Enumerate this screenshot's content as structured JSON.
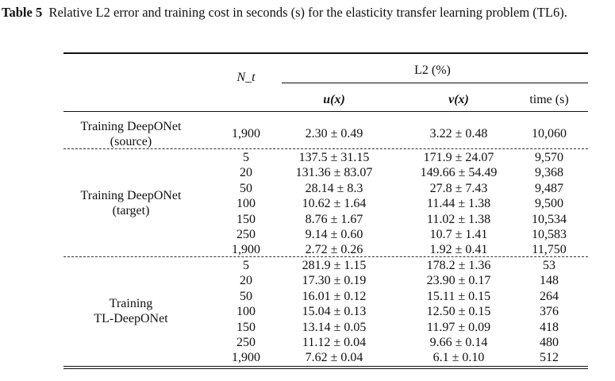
{
  "caption": {
    "label": "Table 5",
    "text": "Relative L2 error and training cost in seconds (s) for the elasticity transfer learning problem (TL6)."
  },
  "header": {
    "nt": "N_t",
    "l2": "L2 (%)",
    "u": "u(x)",
    "v": "v(x)",
    "time": "time (s)"
  },
  "groups": [
    {
      "label": [
        "Training DeepONet",
        "(source)"
      ],
      "rows": [
        [
          "1,900",
          "2.30 ± 0.49",
          "3.22 ± 0.48",
          "10,060"
        ]
      ]
    },
    {
      "label": [
        "Training DeepONet",
        "(target)"
      ],
      "rows": [
        [
          "5",
          "137.5 ± 31.15",
          "171.9 ± 24.07",
          "9,570"
        ],
        [
          "20",
          "131.36 ± 83.07",
          "149.66 ± 54.49",
          "9,368"
        ],
        [
          "50",
          "28.14 ± 8.3",
          "27.8 ± 7.43",
          "9,487"
        ],
        [
          "100",
          "10.62 ± 1.64",
          "11.44 ± 1.38",
          "9,500"
        ],
        [
          "150",
          "8.76 ± 1.67",
          "11.02 ± 1.38",
          "10,534"
        ],
        [
          "250",
          "9.14 ± 0.60",
          "10.7 ± 1.41",
          "10,583"
        ],
        [
          "1,900",
          "2.72 ± 0.26",
          "1.92 ± 0.41",
          "11,750"
        ]
      ]
    },
    {
      "label": [
        "Training",
        "TL-DeepONet"
      ],
      "rows": [
        [
          "5",
          "281.9 ± 1.15",
          "178.2 ± 1.36",
          "53"
        ],
        [
          "20",
          "17.30 ± 0.19",
          "23.90 ± 0.17",
          "148"
        ],
        [
          "50",
          "16.01 ± 0.12",
          "15.11 ± 0.15",
          "264"
        ],
        [
          "100",
          "15.04 ± 0.13",
          "12.50 ± 0.15",
          "376"
        ],
        [
          "150",
          "13.14 ± 0.05",
          "11.97 ± 0.09",
          "418"
        ],
        [
          "250",
          "11.12 ± 0.04",
          "9.66 ± 0.14",
          "480"
        ],
        [
          "1,900",
          "7.62 ± 0.04",
          "6.1 ± 0.10",
          "512"
        ]
      ]
    }
  ]
}
